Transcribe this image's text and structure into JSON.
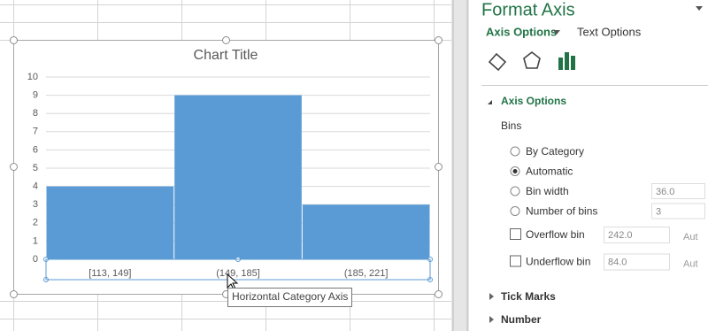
{
  "chart_data": {
    "type": "bar",
    "title": "Chart Title",
    "categories": [
      "[113, 149]",
      "(149, 185]",
      "(185, 221]"
    ],
    "values": [
      4,
      9,
      3
    ],
    "color": "#5b9bd5",
    "ylim": [
      0,
      10
    ],
    "yticks": [
      0,
      1,
      2,
      3,
      4,
      5,
      6,
      7,
      8,
      9,
      10
    ],
    "grid": true,
    "tooltip": "Horizontal Category Axis"
  },
  "pane": {
    "title": "Format Axis",
    "tabs": [
      "Axis Options",
      "Text Options"
    ],
    "section": "Axis Options",
    "group": "Bins",
    "options": [
      {
        "label": "By Category"
      },
      {
        "label": "Automatic"
      },
      {
        "label": "Bin width",
        "value": "36.0"
      },
      {
        "label": "Number of bins",
        "value": "3"
      }
    ],
    "checks": [
      {
        "label": "Overflow bin",
        "value": "242.0",
        "auto": "Aut"
      },
      {
        "label": "Underflow bin",
        "value": "84.0",
        "auto": "Aut"
      }
    ],
    "collapsed": [
      "Tick Marks",
      "Number"
    ]
  }
}
